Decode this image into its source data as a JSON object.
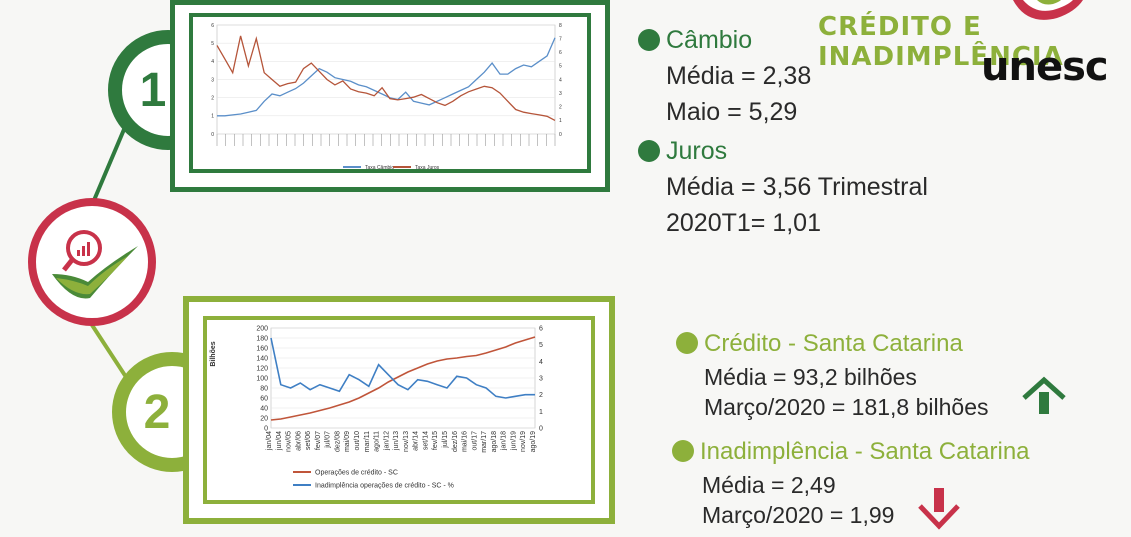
{
  "header": {
    "title": "CRÉDITO E INADIMPLÊNCIA",
    "logo_text": "unesc"
  },
  "steps": [
    {
      "number": "1"
    },
    {
      "number": "2"
    }
  ],
  "cambio": {
    "title": "Câmbio",
    "media": "Média = 2,38",
    "maio": "Maio = 5,29"
  },
  "juros": {
    "title": "Juros",
    "media": "Média = 3,56 Trimestral",
    "t1": "2020T1= 1,01"
  },
  "credito": {
    "title": "Crédito - Santa Catarina",
    "media": "Média = 93,2 bilhões",
    "marco": "Março/2020 = 181,8 bilhões"
  },
  "inadimplencia": {
    "title": "Inadimplência - Santa Catarina",
    "media": "Média = 2,49",
    "marco": "Março/2020 = 1,99"
  },
  "colors": {
    "dark_green": "#2f7a3e",
    "light_green": "#8db03b",
    "red": "#c8324a",
    "orange": "#e8a030"
  },
  "chart_data": [
    {
      "type": "line",
      "yleft_ticks": [
        "0",
        "1",
        "2",
        "3",
        "4",
        "5",
        "6"
      ],
      "yright_ticks": [
        "0",
        "1",
        "2",
        "3",
        "4",
        "5",
        "6",
        "7",
        "8"
      ],
      "ylim_left": [
        0,
        6
      ],
      "ylim_right": [
        0,
        8
      ],
      "legend": [
        "Taxa Câmbio",
        "Taxa Juros"
      ],
      "series": [
        {
          "name": "Taxa Câmbio",
          "axis": "left",
          "color": "#5b8fc9",
          "values": [
            1.0,
            1.0,
            1.05,
            1.1,
            1.2,
            1.3,
            1.8,
            2.2,
            2.1,
            2.3,
            2.5,
            2.8,
            3.2,
            3.6,
            3.4,
            3.1,
            3.0,
            2.9,
            2.7,
            2.6,
            2.4,
            2.2,
            2.0,
            1.9,
            2.3,
            1.8,
            1.7,
            1.6,
            1.8,
            2.0,
            2.2,
            2.4,
            2.6,
            3.0,
            3.4,
            3.9,
            3.3,
            3.3,
            3.6,
            3.8,
            3.7,
            4.0,
            4.3,
            5.3
          ]
        },
        {
          "name": "Taxa Juros",
          "axis": "right",
          "color": "#b5553a",
          "values": [
            6.5,
            5.5,
            4.5,
            7.2,
            5.0,
            7.0,
            4.5,
            4.0,
            3.5,
            3.7,
            3.8,
            4.8,
            5.2,
            4.6,
            4.0,
            3.6,
            3.9,
            3.3,
            3.1,
            3.0,
            2.8,
            3.4,
            2.6,
            2.5,
            2.6,
            2.7,
            2.9,
            2.6,
            2.3,
            2.1,
            2.4,
            2.8,
            3.1,
            3.3,
            3.5,
            3.4,
            3.0,
            2.4,
            1.8,
            1.6,
            1.5,
            1.4,
            1.3,
            1.0
          ]
        }
      ]
    },
    {
      "type": "line",
      "ylabel": "Bilhões",
      "ylim_left": [
        0,
        200
      ],
      "ylim_right": [
        0,
        6
      ],
      "yleft_ticks": [
        "200",
        "180",
        "160",
        "140",
        "120",
        "100",
        "80",
        "60",
        "40",
        "20",
        "0"
      ],
      "yright_ticks": [
        "6",
        "5",
        "4",
        "3",
        "2",
        "1",
        "0"
      ],
      "categories": [
        "jan/04",
        "jun/04",
        "nov/05",
        "abr/06",
        "set/06",
        "fev/07",
        "jul/07",
        "dez/08",
        "mai/09",
        "out/10",
        "mar/11",
        "ago/11",
        "jan/12",
        "jun/13",
        "nov/13",
        "abr/14",
        "set/14",
        "fev/15",
        "jul/15",
        "dez/16",
        "mai/16",
        "out/17",
        "mar/17",
        "ago/18",
        "jan/18",
        "jun/19",
        "nov/19",
        "ago/19"
      ],
      "legend": [
        "Operações de crédito - SC",
        "Inadimplência operações de crédito - SC - %"
      ],
      "series": [
        {
          "name": "Operações de crédito - SC",
          "axis": "left",
          "color": "#c0553a",
          "values": [
            16,
            18,
            22,
            26,
            30,
            35,
            40,
            46,
            52,
            60,
            70,
            80,
            92,
            102,
            112,
            120,
            128,
            134,
            138,
            140,
            143,
            145,
            150,
            156,
            162,
            170,
            176,
            182
          ]
        },
        {
          "name": "Inadimplência operações de crédito - SC - %",
          "axis": "right",
          "color": "#3f7fc4",
          "values": [
            5.4,
            2.6,
            2.4,
            2.7,
            2.3,
            2.6,
            2.4,
            2.2,
            3.2,
            2.9,
            2.5,
            3.8,
            3.2,
            2.6,
            2.3,
            2.9,
            2.8,
            2.6,
            2.4,
            3.1,
            3.0,
            2.6,
            2.4,
            1.9,
            1.8,
            1.9,
            2.0,
            2.0
          ]
        }
      ]
    }
  ]
}
